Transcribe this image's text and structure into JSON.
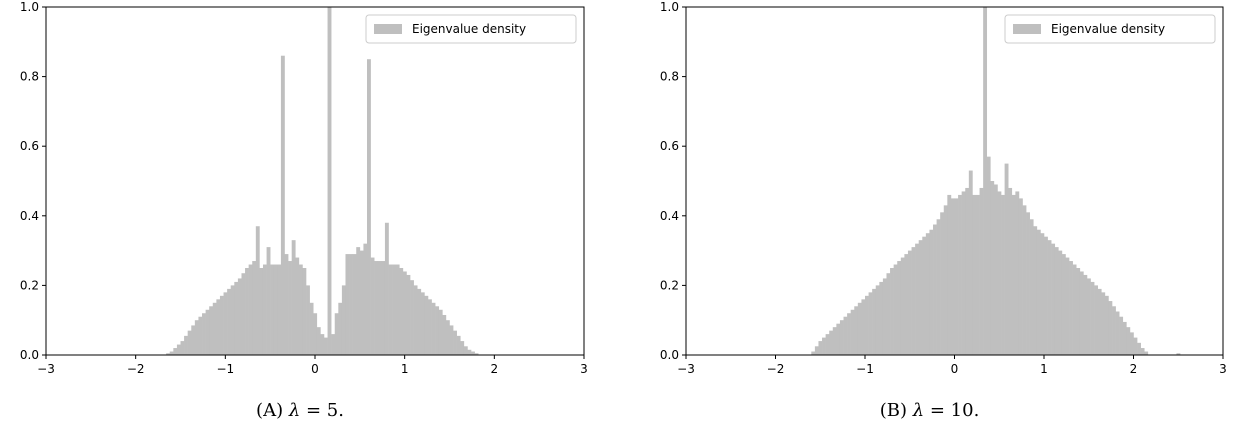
{
  "colors": {
    "bar": "#bfbfbf",
    "axis": "#000000",
    "legend_border": "#cccccc"
  },
  "legend_label": "Eigenvalue density",
  "captions": [
    {
      "tag": "(A)",
      "symbol": "λ",
      "rest": " = 5."
    },
    {
      "tag": "(B)",
      "symbol": "λ",
      "rest": " = 10."
    }
  ],
  "chart_data": [
    {
      "type": "bar",
      "histogram": true,
      "legend": "Eigenvalue density",
      "legend_position": "top-right",
      "grid": false,
      "xlim": [
        -3,
        3
      ],
      "ylim": [
        0,
        1.0
      ],
      "xticks": [
        -3,
        -2,
        -1,
        0,
        1,
        2,
        3
      ],
      "xtick_labels": [
        "−3",
        "−2",
        "−1",
        "0",
        "1",
        "2",
        "3"
      ],
      "yticks": [
        0,
        0.2,
        0.4,
        0.6,
        0.8,
        1.0
      ],
      "ytick_labels": [
        "0.0",
        "0.2",
        "0.4",
        "0.6",
        "0.8",
        "1.0"
      ],
      "bin_start": -1.9,
      "bin_width": 0.04,
      "values": [
        0.0,
        0.0,
        0.0,
        0.0,
        0.0,
        0.0,
        0.005,
        0.01,
        0.02,
        0.03,
        0.04,
        0.055,
        0.07,
        0.085,
        0.1,
        0.11,
        0.12,
        0.13,
        0.14,
        0.15,
        0.16,
        0.17,
        0.18,
        0.19,
        0.2,
        0.21,
        0.22,
        0.235,
        0.25,
        0.26,
        0.27,
        0.37,
        0.25,
        0.26,
        0.31,
        0.26,
        0.26,
        0.26,
        0.86,
        0.29,
        0.27,
        0.33,
        0.28,
        0.26,
        0.25,
        0.2,
        0.15,
        0.12,
        0.08,
        0.06,
        0.05,
        1.0,
        0.06,
        0.12,
        0.15,
        0.2,
        0.29,
        0.29,
        0.29,
        0.31,
        0.3,
        0.32,
        0.85,
        0.28,
        0.27,
        0.27,
        0.27,
        0.38,
        0.26,
        0.26,
        0.26,
        0.25,
        0.24,
        0.23,
        0.215,
        0.2,
        0.19,
        0.18,
        0.17,
        0.16,
        0.15,
        0.14,
        0.13,
        0.115,
        0.1,
        0.085,
        0.07,
        0.055,
        0.04,
        0.025,
        0.015,
        0.01,
        0.005,
        0.0,
        0.0,
        0.0,
        0.0,
        0.0,
        0.0
      ]
    },
    {
      "type": "bar",
      "histogram": true,
      "legend": "Eigenvalue density",
      "legend_position": "top-right",
      "grid": false,
      "xlim": [
        -3,
        3
      ],
      "ylim": [
        0,
        1.0
      ],
      "xticks": [
        -3,
        -2,
        -1,
        0,
        1,
        2,
        3
      ],
      "xtick_labels": [
        "−3",
        "−2",
        "−1",
        "0",
        "1",
        "2",
        "3"
      ],
      "yticks": [
        0,
        0.2,
        0.4,
        0.6,
        0.8,
        1.0
      ],
      "ytick_labels": [
        "0.0",
        "0.2",
        "0.4",
        "0.6",
        "0.8",
        "1.0"
      ],
      "bin_start": -1.6,
      "bin_width": 0.04,
      "values": [
        0.01,
        0.025,
        0.04,
        0.05,
        0.06,
        0.07,
        0.08,
        0.09,
        0.1,
        0.11,
        0.12,
        0.13,
        0.14,
        0.15,
        0.16,
        0.17,
        0.18,
        0.19,
        0.2,
        0.21,
        0.22,
        0.235,
        0.25,
        0.26,
        0.27,
        0.28,
        0.29,
        0.3,
        0.31,
        0.32,
        0.33,
        0.34,
        0.35,
        0.36,
        0.375,
        0.39,
        0.41,
        0.43,
        0.46,
        0.45,
        0.45,
        0.46,
        0.47,
        0.48,
        0.53,
        0.46,
        0.46,
        0.48,
        1.0,
        0.57,
        0.5,
        0.49,
        0.47,
        0.46,
        0.55,
        0.48,
        0.46,
        0.47,
        0.45,
        0.43,
        0.41,
        0.39,
        0.37,
        0.36,
        0.35,
        0.34,
        0.33,
        0.32,
        0.31,
        0.3,
        0.29,
        0.28,
        0.27,
        0.26,
        0.25,
        0.24,
        0.23,
        0.22,
        0.21,
        0.2,
        0.19,
        0.18,
        0.17,
        0.155,
        0.14,
        0.125,
        0.11,
        0.095,
        0.08,
        0.065,
        0.05,
        0.035,
        0.02,
        0.01,
        0.0,
        0.0,
        0.0,
        0.0,
        0.0,
        0.0,
        0.0,
        0.0,
        0.005,
        0.0,
        0.0,
        0.0
      ]
    }
  ]
}
